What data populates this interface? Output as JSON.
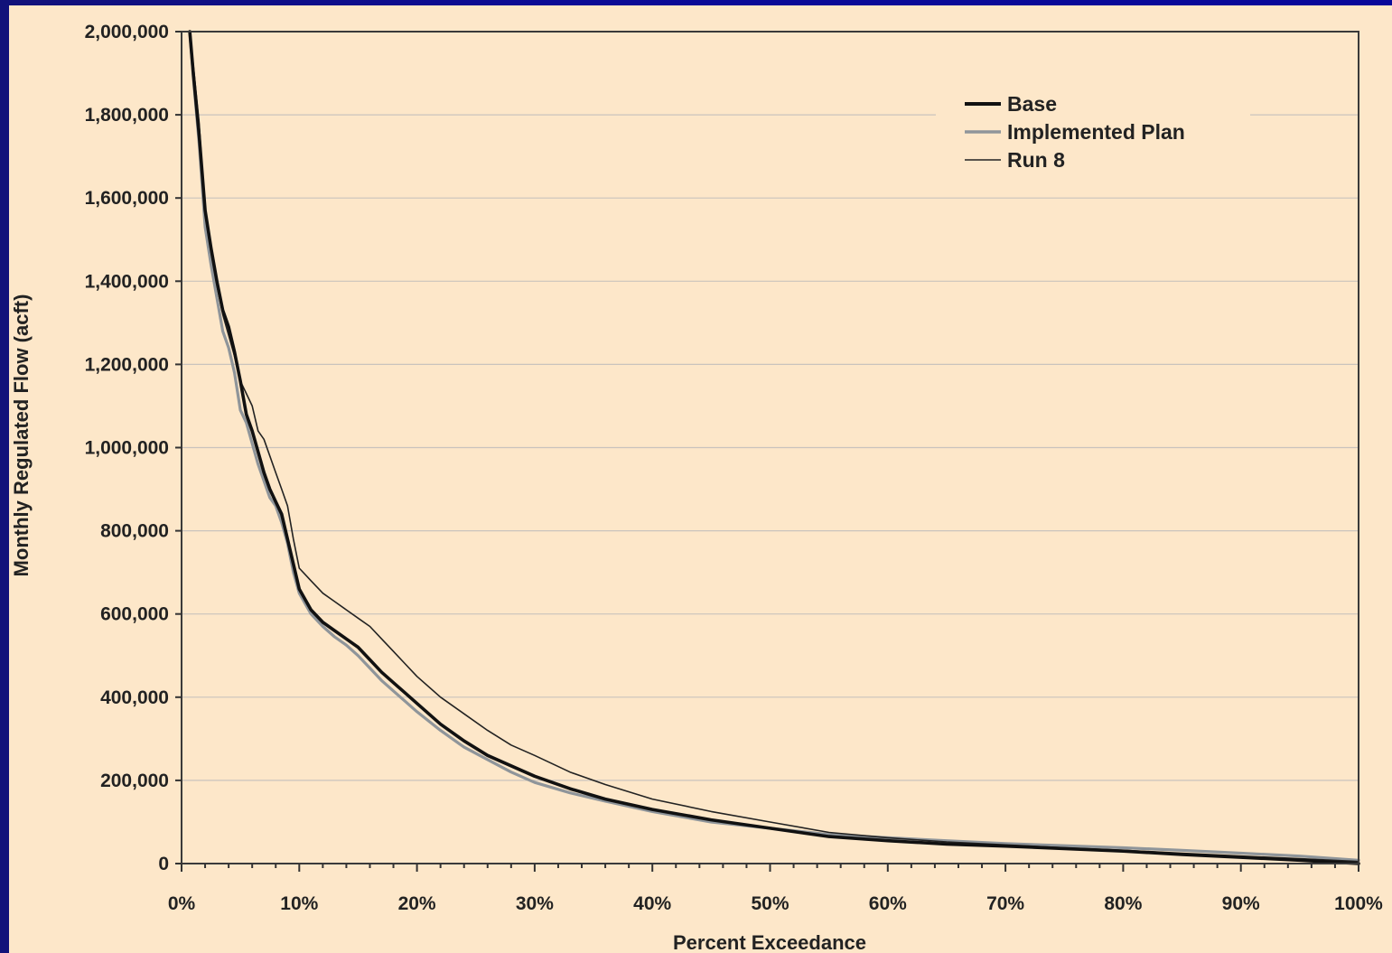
{
  "chart_data": {
    "type": "line",
    "title": "",
    "xlabel": "Percent Exceedance",
    "ylabel": "Monthly Regulated Flow (acft)",
    "xlim": [
      0,
      100
    ],
    "ylim": [
      0,
      2000000
    ],
    "grid": true,
    "legend_position": "top-right",
    "x_ticks": [
      0,
      10,
      20,
      30,
      40,
      50,
      60,
      70,
      80,
      90,
      100
    ],
    "x_tick_labels": [
      "0%",
      "10%",
      "20%",
      "30%",
      "40%",
      "50%",
      "60%",
      "70%",
      "80%",
      "90%",
      "100%"
    ],
    "y_ticks": [
      0,
      200000,
      400000,
      600000,
      800000,
      1000000,
      1200000,
      1400000,
      1600000,
      1800000,
      2000000
    ],
    "y_tick_labels": [
      "0",
      "200,000",
      "400,000",
      "600,000",
      "800,000",
      "1,000,000",
      "1,200,000",
      "1,400,000",
      "1,600,000",
      "1,800,000",
      "2,000,000"
    ],
    "series": [
      {
        "name": "Base",
        "color": "#111111",
        "x": [
          0.7,
          1.0,
          1.5,
          2.0,
          2.5,
          3.0,
          3.5,
          4.0,
          4.5,
          5.0,
          5.5,
          6.0,
          6.5,
          7.0,
          7.5,
          8.0,
          8.5,
          9.0,
          9.5,
          10.0,
          11.0,
          12.0,
          13.0,
          14.0,
          15.0,
          16.0,
          17.0,
          18.0,
          19.0,
          20.0,
          22.0,
          24.0,
          26.0,
          28.0,
          30.0,
          33.0,
          36.0,
          40.0,
          45.0,
          50.0,
          55.0,
          60.0,
          65.0,
          70.0,
          75.0,
          80.0,
          85.0,
          90.0,
          95.0,
          100.0
        ],
        "y": [
          2000000,
          1900000,
          1750000,
          1570000,
          1480000,
          1400000,
          1330000,
          1290000,
          1230000,
          1160000,
          1080000,
          1040000,
          990000,
          940000,
          900000,
          870000,
          840000,
          780000,
          720000,
          660000,
          610000,
          580000,
          560000,
          540000,
          520000,
          490000,
          460000,
          435000,
          410000,
          385000,
          335000,
          295000,
          260000,
          235000,
          210000,
          180000,
          155000,
          130000,
          105000,
          85000,
          65000,
          55000,
          47000,
          42000,
          36000,
          30000,
          22000,
          15000,
          8000,
          0
        ]
      },
      {
        "name": "Implemented Plan",
        "color": "#8f959a",
        "x": [
          0.7,
          1.0,
          1.5,
          2.0,
          2.5,
          3.0,
          3.5,
          4.0,
          4.5,
          5.0,
          5.5,
          6.0,
          6.5,
          7.0,
          7.5,
          8.0,
          8.5,
          9.0,
          9.5,
          10.0,
          11.0,
          12.0,
          13.0,
          14.0,
          15.0,
          16.0,
          17.0,
          18.0,
          19.0,
          20.0,
          22.0,
          24.0,
          26.0,
          28.0,
          30.0,
          33.0,
          36.0,
          40.0,
          45.0,
          50.0,
          55.0,
          60.0,
          65.0,
          70.0,
          75.0,
          80.0,
          85.0,
          90.0,
          95.0,
          100.0
        ],
        "y": [
          2000000,
          1890000,
          1730000,
          1530000,
          1440000,
          1360000,
          1280000,
          1240000,
          1180000,
          1090000,
          1060000,
          1010000,
          960000,
          920000,
          880000,
          860000,
          820000,
          770000,
          700000,
          650000,
          600000,
          570000,
          545000,
          525000,
          500000,
          470000,
          440000,
          415000,
          390000,
          365000,
          320000,
          280000,
          250000,
          220000,
          195000,
          170000,
          150000,
          125000,
          100000,
          85000,
          70000,
          62000,
          55000,
          48000,
          43000,
          38000,
          32000,
          25000,
          18000,
          8000
        ]
      },
      {
        "name": "Run 8",
        "color": "#222222",
        "x": [
          0.7,
          1.0,
          1.5,
          2.0,
          2.5,
          3.0,
          3.5,
          4.0,
          4.5,
          5.0,
          5.5,
          6.0,
          6.5,
          7.0,
          7.5,
          8.0,
          8.5,
          9.0,
          9.5,
          10.0,
          11.0,
          12.0,
          13.0,
          14.0,
          15.0,
          16.0,
          17.0,
          18.0,
          19.0,
          20.0,
          22.0,
          24.0,
          26.0,
          28.0,
          30.0,
          33.0,
          36.0,
          40.0,
          45.0,
          50.0,
          55.0,
          60.0,
          65.0,
          70.0,
          75.0,
          80.0,
          85.0,
          90.0,
          95.0,
          100.0
        ],
        "y": [
          2000000,
          1920000,
          1780000,
          1560000,
          1470000,
          1390000,
          1320000,
          1270000,
          1220000,
          1160000,
          1130000,
          1100000,
          1040000,
          1020000,
          980000,
          940000,
          900000,
          860000,
          780000,
          710000,
          680000,
          650000,
          630000,
          610000,
          590000,
          570000,
          540000,
          510000,
          480000,
          450000,
          400000,
          360000,
          320000,
          285000,
          260000,
          220000,
          190000,
          155000,
          125000,
          100000,
          75000,
          62000,
          52000,
          45000,
          38000,
          32000,
          25000,
          18000,
          12000,
          5000
        ]
      }
    ]
  }
}
